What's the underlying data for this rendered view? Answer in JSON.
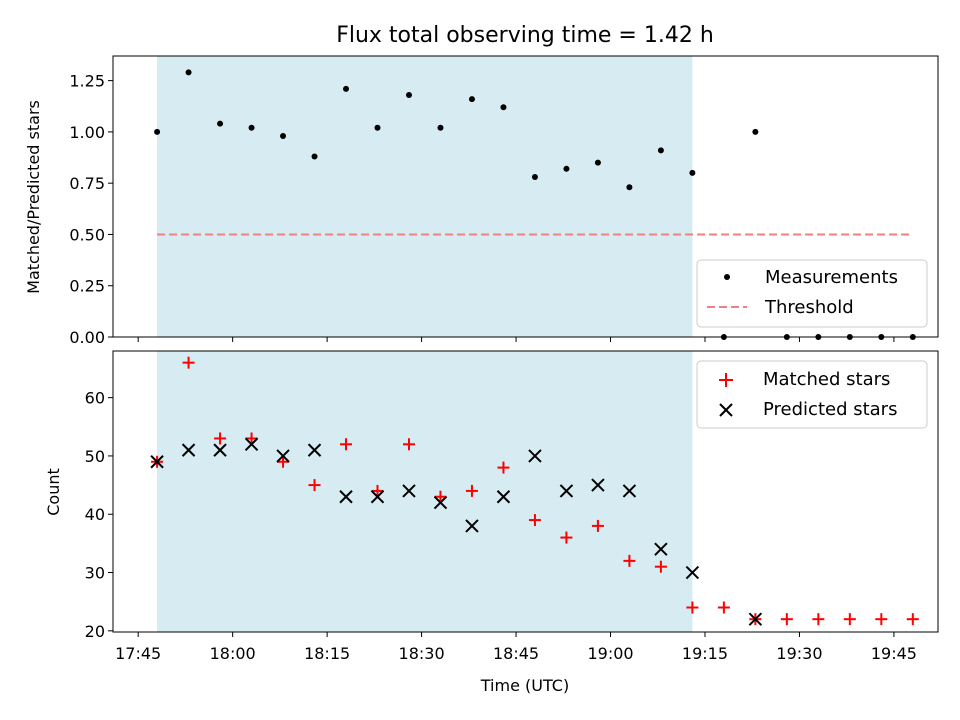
{
  "chart_data": [
    {
      "type": "scatter",
      "panel": "top",
      "title": "Flux total observing time = 1.42 h",
      "ylabel": "Matched/Predicted stars",
      "xlabel": "",
      "xlim": [
        "17:41",
        "19:52"
      ],
      "ylim": [
        0,
        1.37
      ],
      "yticks": [
        0.0,
        0.25,
        0.5,
        0.75,
        1.0,
        1.25
      ],
      "ytick_labels": [
        "0.00",
        "0.25",
        "0.50",
        "0.75",
        "1.00",
        "1.25"
      ],
      "shaded_region": {
        "start": "17:48",
        "end": "19:13",
        "color": "#add8e6"
      },
      "series": [
        {
          "name": "Measurements",
          "marker": "dot",
          "color": "#000000",
          "x": [
            "17:48",
            "17:53",
            "17:58",
            "18:03",
            "18:08",
            "18:13",
            "18:18",
            "18:23",
            "18:28",
            "18:33",
            "18:38",
            "18:43",
            "18:48",
            "18:53",
            "18:58",
            "19:03",
            "19:08",
            "19:13",
            "19:18",
            "19:23",
            "19:28",
            "19:33",
            "19:38",
            "19:43",
            "19:48"
          ],
          "y": [
            1.0,
            1.29,
            1.04,
            1.02,
            0.98,
            0.88,
            1.21,
            1.02,
            1.18,
            1.02,
            1.16,
            1.12,
            0.78,
            0.82,
            0.85,
            0.73,
            0.91,
            0.8,
            0.0,
            1.0,
            0.0,
            0.0,
            0.0,
            0.0,
            0.0
          ]
        },
        {
          "name": "Threshold",
          "line": "dashed",
          "color": "#f08080",
          "x": [
            "17:48",
            "19:48"
          ],
          "y": [
            0.5,
            0.5
          ]
        }
      ],
      "legend": {
        "placement": "lower-right",
        "entries": [
          "Measurements",
          "Threshold"
        ]
      }
    },
    {
      "type": "scatter",
      "panel": "bottom",
      "title": "",
      "ylabel": "Count",
      "xlabel": "Time (UTC)",
      "xlim": [
        "17:41",
        "19:52"
      ],
      "ylim": [
        19.8,
        68
      ],
      "yticks": [
        20,
        30,
        40,
        50,
        60
      ],
      "ytick_labels": [
        "20",
        "30",
        "40",
        "50",
        "60"
      ],
      "xticks": [
        "17:45",
        "18:00",
        "18:15",
        "18:30",
        "18:45",
        "19:00",
        "19:15",
        "19:30",
        "19:45"
      ],
      "xtick_labels": [
        "17:45",
        "18:00",
        "18:15",
        "18:30",
        "18:45",
        "19:00",
        "19:15",
        "19:30",
        "19:45"
      ],
      "shaded_region": {
        "start": "17:48",
        "end": "19:13",
        "color": "#add8e6"
      },
      "series": [
        {
          "name": "Matched stars",
          "marker": "plus",
          "color": "#ff0000",
          "x": [
            "17:48",
            "17:53",
            "17:58",
            "18:03",
            "18:08",
            "18:13",
            "18:18",
            "18:23",
            "18:28",
            "18:33",
            "18:38",
            "18:43",
            "18:48",
            "18:53",
            "18:58",
            "19:03",
            "19:08",
            "19:13",
            "19:18",
            "19:23",
            "19:28",
            "19:33",
            "19:38",
            "19:43",
            "19:48"
          ],
          "y": [
            49,
            66,
            53,
            53,
            49,
            45,
            52,
            44,
            52,
            43,
            44,
            48,
            39,
            36,
            38,
            32,
            31,
            24,
            24,
            22,
            22,
            22,
            22,
            22,
            22
          ]
        },
        {
          "name": "Predicted stars",
          "marker": "x",
          "color": "#000000",
          "x": [
            "17:48",
            "17:53",
            "17:58",
            "18:03",
            "18:08",
            "18:13",
            "18:18",
            "18:23",
            "18:28",
            "18:33",
            "18:38",
            "18:43",
            "18:48",
            "18:53",
            "18:58",
            "19:03",
            "19:08",
            "19:13",
            "19:23"
          ],
          "y": [
            49,
            51,
            51,
            52,
            50,
            51,
            43,
            43,
            44,
            42,
            38,
            43,
            50,
            44,
            45,
            44,
            34,
            30,
            22
          ]
        }
      ],
      "legend": {
        "placement": "upper-right",
        "entries": [
          "Matched stars",
          "Predicted stars"
        ]
      }
    }
  ]
}
